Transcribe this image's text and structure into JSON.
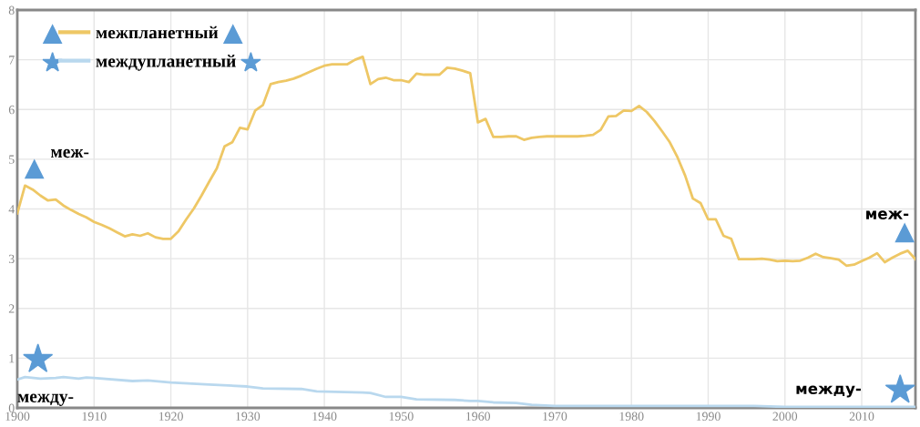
{
  "chart_data": {
    "type": "line",
    "x": [
      1900,
      1901,
      1902,
      1903,
      1904,
      1905,
      1906,
      1907,
      1908,
      1909,
      1910,
      1911,
      1912,
      1913,
      1914,
      1915,
      1916,
      1917,
      1918,
      1919,
      1920,
      1921,
      1922,
      1923,
      1924,
      1925,
      1926,
      1927,
      1928,
      1929,
      1930,
      1931,
      1932,
      1933,
      1934,
      1935,
      1936,
      1937,
      1938,
      1939,
      1940,
      1941,
      1942,
      1943,
      1944,
      1945,
      1946,
      1947,
      1948,
      1949,
      1950,
      1951,
      1952,
      1953,
      1954,
      1955,
      1956,
      1957,
      1958,
      1959,
      1960,
      1961,
      1962,
      1963,
      1964,
      1965,
      1966,
      1967,
      1968,
      1969,
      1970,
      1971,
      1972,
      1973,
      1974,
      1975,
      1976,
      1977,
      1978,
      1979,
      1980,
      1981,
      1982,
      1983,
      1984,
      1985,
      1986,
      1987,
      1988,
      1989,
      1990,
      1991,
      1992,
      1993,
      1994,
      1995,
      1996,
      1997,
      1998,
      1999,
      2000,
      2001,
      2002,
      2003,
      2004,
      2005,
      2006,
      2007,
      2008,
      2009,
      2010,
      2011,
      2012,
      2013,
      2014,
      2015,
      2016,
      2017
    ],
    "series": [
      {
        "name": "межпланетный",
        "color": "#eec765",
        "values": [
          3.91,
          4.47,
          4.39,
          4.27,
          4.17,
          4.19,
          4.07,
          3.98,
          3.9,
          3.83,
          3.74,
          3.68,
          3.61,
          3.53,
          3.45,
          3.49,
          3.46,
          3.51,
          3.43,
          3.4,
          3.4,
          3.55,
          3.79,
          4.01,
          4.27,
          4.55,
          4.82,
          5.26,
          5.34,
          5.63,
          5.6,
          5.98,
          6.09,
          6.51,
          6.55,
          6.58,
          6.62,
          6.68,
          6.75,
          6.82,
          6.88,
          6.91,
          6.91,
          6.91,
          7.0,
          7.06,
          6.51,
          6.61,
          6.64,
          6.59,
          6.59,
          6.55,
          6.72,
          6.7,
          6.7,
          6.7,
          6.84,
          6.82,
          6.78,
          6.73,
          5.74,
          5.81,
          5.45,
          5.45,
          5.46,
          5.46,
          5.39,
          5.43,
          5.45,
          5.46,
          5.46,
          5.46,
          5.46,
          5.46,
          5.47,
          5.49,
          5.59,
          5.86,
          5.87,
          5.98,
          5.97,
          6.07,
          5.95,
          5.77,
          5.56,
          5.34,
          5.04,
          4.67,
          4.21,
          4.12,
          3.79,
          3.79,
          3.46,
          3.4,
          2.99,
          2.99,
          2.99,
          3.0,
          2.98,
          2.95,
          2.96,
          2.95,
          2.96,
          3.02,
          3.1,
          3.03,
          3.01,
          2.98,
          2.86,
          2.88,
          2.95,
          3.02,
          3.11,
          2.93,
          3.02,
          3.1,
          3.16,
          2.99
        ]
      },
      {
        "name": "междупланетный",
        "color": "#b9d8ee",
        "x": [
          1900,
          1901,
          1903,
          1905,
          1906,
          1908,
          1909,
          1910,
          1915,
          1917,
          1920,
          1925,
          1930,
          1932,
          1937,
          1939,
          1945,
          1946,
          1948,
          1950,
          1952,
          1957,
          1959,
          1960,
          1962,
          1965,
          1967,
          1970,
          1980,
          1990,
          1996,
          2000,
          2010,
          2017
        ],
        "values": [
          0.57,
          0.62,
          0.59,
          0.6,
          0.62,
          0.59,
          0.61,
          0.6,
          0.54,
          0.55,
          0.51,
          0.47,
          0.43,
          0.39,
          0.38,
          0.33,
          0.31,
          0.3,
          0.22,
          0.22,
          0.17,
          0.16,
          0.14,
          0.14,
          0.11,
          0.1,
          0.06,
          0.04,
          0.04,
          0.04,
          0.04,
          0.02,
          0.02,
          0.02
        ]
      }
    ],
    "annotations": [
      "меж-",
      "меж-",
      "между-",
      "между-"
    ],
    "xlim": [
      1900,
      2017
    ],
    "ylim": [
      0,
      8
    ],
    "xticks": [
      1900,
      1910,
      1920,
      1930,
      1940,
      1950,
      1960,
      1970,
      1980,
      1990,
      2000,
      2010
    ],
    "yticks": [
      0,
      1,
      2,
      3,
      4,
      5,
      6,
      7,
      8
    ],
    "grid": true,
    "legend": "top left",
    "marker": "none",
    "line_style": "solid"
  }
}
